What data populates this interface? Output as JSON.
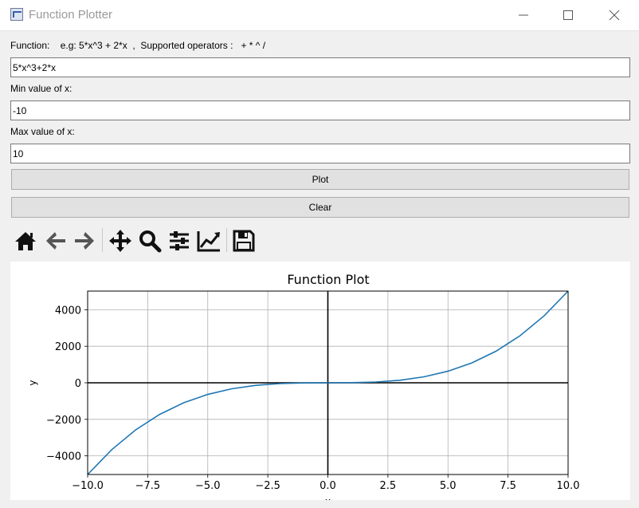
{
  "window": {
    "title": "Function Plotter"
  },
  "form": {
    "function_label": "Function:    e.g: 5*x^3 + 2*x  ,  Supported operators :   + * ^ /",
    "function_value": "5*x^3+2*x",
    "min_label": "Min value of x:",
    "min_value": "-10",
    "max_label": "Max value of x:",
    "max_value": "10"
  },
  "buttons": {
    "plot_label": "Plot",
    "clear_label": "Clear"
  },
  "toolbar": {
    "icons": [
      "home-icon",
      "back-arrow-icon",
      "forward-arrow-icon",
      "pan-icon",
      "zoom-icon",
      "configure-subplots-icon",
      "edit-axis-icon",
      "save-icon"
    ]
  },
  "chart_data": {
    "type": "line",
    "title": "Function Plot",
    "xlabel": "x",
    "ylabel": "y",
    "xlim": [
      -10,
      10
    ],
    "ylim": [
      -5020,
      5020
    ],
    "xticks": [
      -10,
      -7.5,
      -5,
      -2.5,
      0,
      2.5,
      5,
      7.5,
      10
    ],
    "xtick_labels": [
      "−10.0",
      "−7.5",
      "−5.0",
      "−2.5",
      "0.0",
      "2.5",
      "5.0",
      "7.5",
      "10.0"
    ],
    "yticks": [
      -4000,
      -2000,
      0,
      2000,
      4000
    ],
    "ytick_labels": [
      "−4000",
      "−2000",
      "0",
      "2000",
      "4000"
    ],
    "grid": true,
    "series_color": "#1f77b4",
    "x": [
      -10,
      -9,
      -8,
      -7,
      -6,
      -5,
      -4,
      -3,
      -2,
      -1,
      0,
      1,
      2,
      3,
      4,
      5,
      6,
      7,
      8,
      9,
      10
    ],
    "y": [
      -5020,
      -3663,
      -2576,
      -1729,
      -1092,
      -635,
      -328,
      -141,
      -44,
      -7,
      0,
      7,
      44,
      141,
      328,
      635,
      1092,
      1729,
      2576,
      3663,
      5020
    ]
  }
}
